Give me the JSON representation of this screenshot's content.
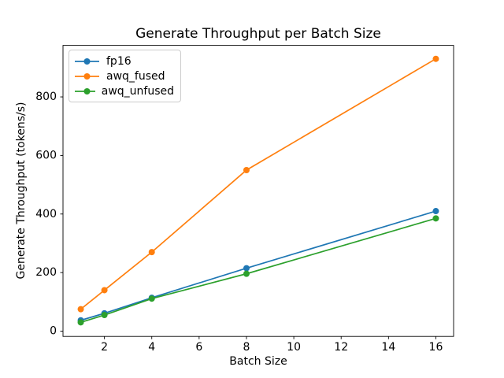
{
  "figure": {
    "background": "#ffffff",
    "frame_color": "#000000"
  },
  "chart_data": {
    "type": "line",
    "title": "Generate Throughput per Batch Size",
    "xlabel": "Batch Size",
    "ylabel": "Generate Throughput (tokens/s)",
    "x": [
      1,
      2,
      4,
      8,
      16
    ],
    "series": [
      {
        "name": "fp16",
        "color": "#1f77b4",
        "marker": "o",
        "values": [
          37,
          61,
          114,
          215,
          410
        ]
      },
      {
        "name": "awq_fused",
        "color": "#ff7f0e",
        "marker": "o",
        "values": [
          75,
          140,
          270,
          550,
          930
        ]
      },
      {
        "name": "awq_unfused",
        "color": "#2ca02c",
        "marker": "o",
        "values": [
          30,
          55,
          111,
          196,
          385
        ]
      }
    ],
    "xticks": [
      2,
      4,
      6,
      8,
      10,
      12,
      14,
      16
    ],
    "yticks": [
      0,
      200,
      400,
      600,
      800
    ],
    "xlim": [
      0.25,
      16.75
    ],
    "ylim": [
      -18,
      976
    ],
    "grid": false,
    "legend_position": "upper left"
  }
}
